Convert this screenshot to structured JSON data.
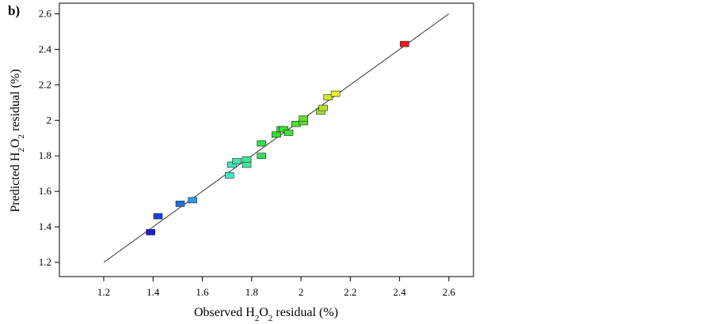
{
  "panel_label": "b)",
  "chart_data": {
    "type": "scatter",
    "title": "",
    "xlabel": {
      "main": "Observed H",
      "sub1": "2",
      "mid": "O",
      "sub2": "2",
      "end": " residual (%)"
    },
    "ylabel": {
      "main": "Predicted H",
      "sub1": "2",
      "mid": "O",
      "sub2": "2",
      "end": " residual (%)"
    },
    "xlim": [
      1.02,
      2.7
    ],
    "ylim": [
      1.12,
      2.66
    ],
    "xticks": [
      1.2,
      1.4,
      1.6,
      1.8,
      2,
      2.2,
      2.4,
      2.6
    ],
    "xtick_labels": [
      "1.2",
      "1.4",
      "1.6",
      "1.8",
      "2",
      "2.2",
      "2.4",
      "2.6"
    ],
    "yticks": [
      1.2,
      1.4,
      1.6,
      1.8,
      2,
      2.2,
      2.4,
      2.6
    ],
    "ytick_labels": [
      "1.2",
      "1.4",
      "1.6",
      "1.8",
      "2",
      "2.2",
      "2.4",
      "2.6"
    ],
    "reference_line": {
      "x": [
        1.2,
        2.6
      ],
      "y": [
        1.2,
        2.6
      ]
    },
    "points": [
      {
        "x": 1.39,
        "y": 1.37,
        "color": "#1c1cd6"
      },
      {
        "x": 1.42,
        "y": 1.46,
        "color": "#1f3ce8"
      },
      {
        "x": 1.51,
        "y": 1.53,
        "color": "#1f6fe0"
      },
      {
        "x": 1.56,
        "y": 1.55,
        "color": "#2a9be8"
      },
      {
        "x": 1.71,
        "y": 1.69,
        "color": "#40e6c8"
      },
      {
        "x": 1.72,
        "y": 1.75,
        "color": "#40e6c0"
      },
      {
        "x": 1.74,
        "y": 1.77,
        "color": "#40e6b0"
      },
      {
        "x": 1.78,
        "y": 1.75,
        "color": "#40e8a0"
      },
      {
        "x": 1.78,
        "y": 1.78,
        "color": "#40e890"
      },
      {
        "x": 1.84,
        "y": 1.8,
        "color": "#30e060"
      },
      {
        "x": 1.84,
        "y": 1.87,
        "color": "#30e050"
      },
      {
        "x": 1.9,
        "y": 1.92,
        "color": "#30e030"
      },
      {
        "x": 1.92,
        "y": 1.95,
        "color": "#30e030"
      },
      {
        "x": 1.93,
        "y": 1.95,
        "color": "#38e030"
      },
      {
        "x": 1.95,
        "y": 1.93,
        "color": "#40e030"
      },
      {
        "x": 1.98,
        "y": 1.98,
        "color": "#50e030"
      },
      {
        "x": 2.01,
        "y": 1.99,
        "color": "#60e030"
      },
      {
        "x": 2.01,
        "y": 2.01,
        "color": "#60e030"
      },
      {
        "x": 2.08,
        "y": 2.05,
        "color": "#a8e030"
      },
      {
        "x": 2.09,
        "y": 2.07,
        "color": "#b8e030"
      },
      {
        "x": 2.11,
        "y": 2.13,
        "color": "#d0e830"
      },
      {
        "x": 2.14,
        "y": 2.15,
        "color": "#e8f030"
      },
      {
        "x": 2.42,
        "y": 2.43,
        "color": "#ee1c1c"
      }
    ]
  }
}
